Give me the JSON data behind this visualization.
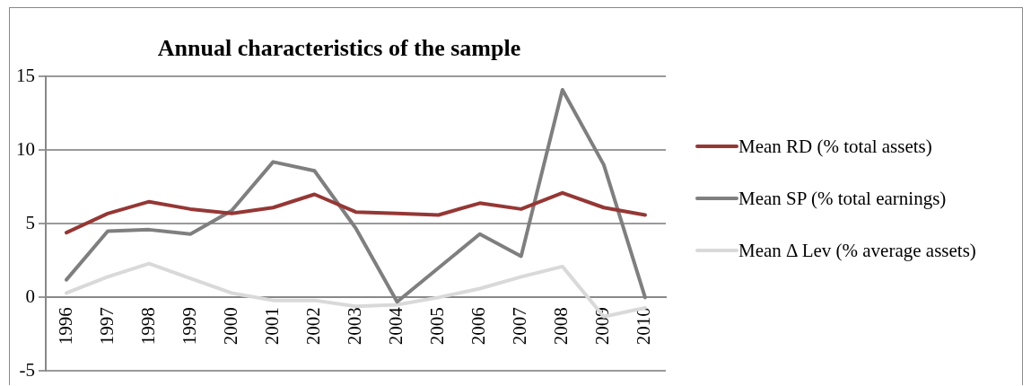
{
  "chart_data": {
    "type": "line",
    "title": "Annual characteristics of the sample",
    "categories": [
      "1996",
      "1997",
      "1998",
      "1999",
      "2000",
      "2001",
      "2002",
      "2003",
      "2004",
      "2005",
      "2006",
      "2007",
      "2008",
      "2009",
      "2010"
    ],
    "series": [
      {
        "name": "Mean RD (% total assets)",
        "color": "#953735",
        "values": [
          4.4,
          5.7,
          6.5,
          6.0,
          5.7,
          6.1,
          7.0,
          5.8,
          5.7,
          5.6,
          6.4,
          6.0,
          7.1,
          6.1,
          5.6
        ]
      },
      {
        "name": "Mean SP (% total earnings)",
        "color": "#7f7f7f",
        "values": [
          1.2,
          4.5,
          4.6,
          4.3,
          5.9,
          9.2,
          8.6,
          4.7,
          -0.3,
          2.0,
          4.3,
          2.8,
          14.1,
          9.0,
          0
        ]
      },
      {
        "name": "Mean Δ Lev (% average assets)",
        "color": "#d9d9d9",
        "values": [
          0.3,
          1.4,
          2.3,
          1.3,
          0.3,
          -0.2,
          -0.2,
          -0.6,
          -0.5,
          0,
          0.6,
          1.4,
          2.1,
          -1.3,
          -0.7
        ]
      }
    ],
    "ylim": [
      -5,
      15
    ],
    "yticks": [
      -5,
      0,
      5,
      10,
      15
    ],
    "grid": "y",
    "legend": "right",
    "marker": "none",
    "line_style": "solid"
  }
}
